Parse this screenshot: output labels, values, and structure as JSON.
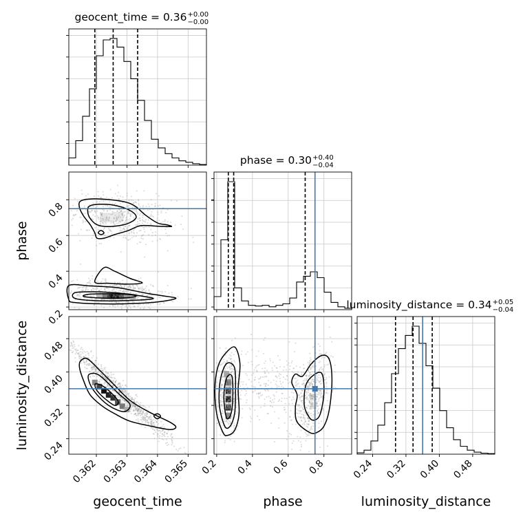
{
  "params": [
    {
      "name": "geocent_time",
      "title_label": "geocent_time",
      "median": "0.36",
      "plus": "+0.00",
      "minus": "−0.00"
    },
    {
      "name": "phase",
      "title_label": "phase",
      "median": "0.30",
      "plus": "+0.40",
      "minus": "−0.04"
    },
    {
      "name": "luminosity_distance",
      "title_label": "luminosity_distance",
      "median": "0.34",
      "plus": "+0.05",
      "minus": "−0.04"
    }
  ],
  "axis_labels": [
    "geocent_time",
    "phase",
    "luminosity_distance"
  ],
  "tick_labels": {
    "geocent_time": [
      "0.362",
      "0.363",
      "0.364",
      "0.365"
    ],
    "phase": [
      "0.2",
      "0.4",
      "0.6",
      "0.8"
    ],
    "luminosity_distance": [
      "0.24",
      "0.32",
      "0.40",
      "0.48"
    ]
  },
  "colors": {
    "truth": "#4477aa",
    "hist": "#000000",
    "grid": "#c8c8c8",
    "points": "#9a9a9a"
  },
  "chart_data": {
    "type": "corner",
    "parameters": [
      "geocent_time",
      "phase",
      "luminosity_distance"
    ],
    "ranges": {
      "geocent_time": [
        0.3611,
        0.3656
      ],
      "phase": [
        0.185,
        0.955
      ],
      "luminosity_distance": [
        0.203,
        0.533
      ]
    },
    "ticks": {
      "geocent_time": [
        0.362,
        0.363,
        0.364,
        0.365
      ],
      "phase": [
        0.2,
        0.4,
        0.6,
        0.8
      ],
      "luminosity_distance": [
        0.24,
        0.32,
        0.4,
        0.48
      ]
    },
    "truths": {
      "geocent_time": null,
      "phase": 0.75,
      "luminosity_distance": 0.36
    },
    "quantiles": {
      "geocent_time": [
        0.36195,
        0.36255,
        0.36335
      ],
      "phase": [
        0.265,
        0.295,
        0.695
      ],
      "luminosity_distance": [
        0.295,
        0.337,
        0.383
      ]
    },
    "histograms": {
      "geocent_time": {
        "bins": 20,
        "counts": [
          0.05,
          0.17,
          0.34,
          0.53,
          0.76,
          0.87,
          0.88,
          0.82,
          0.72,
          0.6,
          0.45,
          0.31,
          0.18,
          0.12,
          0.08,
          0.05,
          0.03,
          0.02,
          0.01,
          0.005
        ]
      },
      "phase": {
        "bins": 20,
        "counts": [
          0.09,
          0.48,
          0.88,
          0.15,
          0.06,
          0.03,
          0.025,
          0.03,
          0.02,
          0.03,
          0.04,
          0.08,
          0.19,
          0.23,
          0.26,
          0.22,
          0.12,
          0.05,
          0.02,
          0.01
        ]
      },
      "luminosity_distance": {
        "bins": 20,
        "counts": [
          0.01,
          0.03,
          0.1,
          0.22,
          0.39,
          0.61,
          0.8,
          0.9,
          0.97,
          0.84,
          0.67,
          0.5,
          0.33,
          0.2,
          0.11,
          0.06,
          0.03,
          0.015,
          0.008,
          0.004
        ]
      }
    },
    "contours_2d": {
      "phase_vs_geocent_time": [
        {
          "level": 1,
          "pts": [
            [
              0.36148,
              0.792
            ],
            [
              0.36185,
              0.805
            ],
            [
              0.36245,
              0.8
            ],
            [
              0.363,
              0.785
            ],
            [
              0.3633,
              0.76
            ],
            [
              0.3636,
              0.715
            ],
            [
              0.364,
              0.67
            ],
            [
              0.3643,
              0.66
            ],
            [
              0.36445,
              0.65
            ],
            [
              0.364,
              0.652
            ],
            [
              0.36345,
              0.655
            ],
            [
              0.36305,
              0.628
            ],
            [
              0.3626,
              0.605
            ],
            [
              0.36225,
              0.585
            ],
            [
              0.36202,
              0.585
            ],
            [
              0.36195,
              0.615
            ],
            [
              0.3618,
              0.66
            ],
            [
              0.36158,
              0.71
            ],
            [
              0.36145,
              0.755
            ]
          ]
        },
        {
          "level": 2,
          "pts": [
            [
              0.36178,
              0.765
            ],
            [
              0.3622,
              0.775
            ],
            [
              0.3627,
              0.765
            ],
            [
              0.36315,
              0.735
            ],
            [
              0.3633,
              0.7
            ],
            [
              0.363,
              0.665
            ],
            [
              0.36245,
              0.65
            ],
            [
              0.36205,
              0.658
            ],
            [
              0.36182,
              0.69
            ],
            [
              0.36172,
              0.73
            ]
          ]
        },
        {
          "level": 1,
          "pts": [
            [
              0.36206,
              0.615
            ],
            [
              0.36215,
              0.628
            ],
            [
              0.36225,
              0.615
            ],
            [
              0.36216,
              0.605
            ]
          ]
        },
        {
          "level": 1,
          "pts": [
            [
              0.3611,
              0.24
            ],
            [
              0.3613,
              0.225
            ],
            [
              0.362,
              0.218
            ],
            [
              0.363,
              0.218
            ],
            [
              0.364,
              0.228
            ],
            [
              0.3646,
              0.248
            ],
            [
              0.3642,
              0.262
            ],
            [
              0.3637,
              0.275
            ],
            [
              0.3632,
              0.292
            ],
            [
              0.3627,
              0.308
            ],
            [
              0.3618,
              0.318
            ],
            [
              0.3611,
              0.32
            ]
          ]
        },
        {
          "level": 2,
          "pts": [
            [
              0.3613,
              0.248
            ],
            [
              0.362,
              0.235
            ],
            [
              0.363,
              0.236
            ],
            [
              0.36385,
              0.246
            ],
            [
              0.36345,
              0.262
            ],
            [
              0.3627,
              0.278
            ],
            [
              0.3619,
              0.285
            ],
            [
              0.3613,
              0.28
            ]
          ]
        },
        {
          "level": 3,
          "pts": [
            [
              0.3616,
              0.258
            ],
            [
              0.3622,
              0.25
            ],
            [
              0.363,
              0.252
            ],
            [
              0.3633,
              0.262
            ],
            [
              0.3629,
              0.272
            ],
            [
              0.3622,
              0.274
            ],
            [
              0.3617,
              0.27
            ]
          ]
        },
        {
          "level": 1,
          "pts": [
            [
              0.36195,
              0.34
            ],
            [
              0.36225,
              0.42
            ],
            [
              0.3626,
              0.4
            ],
            [
              0.3631,
              0.36
            ],
            [
              0.3635,
              0.335
            ],
            [
              0.363,
              0.328
            ],
            [
              0.3624,
              0.333
            ]
          ]
        }
      ],
      "luminosity_distance_vs_geocent_time": [
        {
          "level": 1,
          "pts": [
            [
              0.36148,
              0.426
            ],
            [
              0.3617,
              0.432
            ],
            [
              0.3621,
              0.405
            ],
            [
              0.3626,
              0.368
            ],
            [
              0.3631,
              0.332
            ],
            [
              0.3637,
              0.305
            ],
            [
              0.3644,
              0.28
            ],
            [
              0.3646,
              0.268
            ],
            [
              0.3644,
              0.262
            ],
            [
              0.3638,
              0.27
            ],
            [
              0.3631,
              0.282
            ],
            [
              0.3626,
              0.3
            ],
            [
              0.3622,
              0.318
            ],
            [
              0.3618,
              0.345
            ],
            [
              0.36158,
              0.38
            ],
            [
              0.36145,
              0.41
            ]
          ]
        },
        {
          "level": 2,
          "pts": [
            [
              0.36178,
              0.395
            ],
            [
              0.3621,
              0.392
            ],
            [
              0.3627,
              0.35
            ],
            [
              0.3631,
              0.322
            ],
            [
              0.3629,
              0.305
            ],
            [
              0.3624,
              0.32
            ],
            [
              0.36195,
              0.352
            ],
            [
              0.36175,
              0.38
            ]
          ]
        },
        {
          "level": 3,
          "pts": [
            [
              0.36198,
              0.372
            ],
            [
              0.3623,
              0.362
            ],
            [
              0.3627,
              0.332
            ],
            [
              0.3626,
              0.32
            ],
            [
              0.36225,
              0.338
            ],
            [
              0.362,
              0.358
            ]
          ]
        },
        {
          "level": 1,
          "pts": [
            [
              0.36388,
              0.295
            ],
            [
              0.364,
              0.3
            ],
            [
              0.3641,
              0.294
            ],
            [
              0.36399,
              0.288
            ]
          ]
        }
      ],
      "luminosity_distance_vs_phase": [
        {
          "level": 1,
          "pts": [
            [
              0.235,
              0.255
            ],
            [
              0.2,
              0.3
            ],
            [
              0.19,
              0.36
            ],
            [
              0.205,
              0.41
            ],
            [
              0.24,
              0.44
            ],
            [
              0.3,
              0.46
            ],
            [
              0.33,
              0.42
            ],
            [
              0.32,
              0.36
            ],
            [
              0.325,
              0.3
            ],
            [
              0.3,
              0.26
            ],
            [
              0.26,
              0.248
            ]
          ]
        },
        {
          "level": 2,
          "pts": [
            [
              0.245,
              0.27
            ],
            [
              0.215,
              0.32
            ],
            [
              0.22,
              0.38
            ],
            [
              0.255,
              0.42
            ],
            [
              0.3,
              0.41
            ],
            [
              0.305,
              0.35
            ],
            [
              0.3,
              0.3
            ],
            [
              0.275,
              0.27
            ]
          ]
        },
        {
          "level": 3,
          "pts": [
            [
              0.255,
              0.29
            ],
            [
              0.24,
              0.34
            ],
            [
              0.255,
              0.385
            ],
            [
              0.285,
              0.39
            ],
            [
              0.29,
              0.34
            ],
            [
              0.28,
              0.3
            ]
          ]
        },
        {
          "level": 1,
          "pts": [
            [
              0.72,
              0.255
            ],
            [
              0.65,
              0.28
            ],
            [
              0.64,
              0.315
            ],
            [
              0.65,
              0.345
            ],
            [
              0.62,
              0.375
            ],
            [
              0.64,
              0.395
            ],
            [
              0.68,
              0.39
            ],
            [
              0.73,
              0.42
            ],
            [
              0.79,
              0.44
            ],
            [
              0.83,
              0.43
            ],
            [
              0.845,
              0.38
            ],
            [
              0.83,
              0.31
            ],
            [
              0.8,
              0.27
            ],
            [
              0.76,
              0.255
            ]
          ]
        },
        {
          "level": 2,
          "pts": [
            [
              0.72,
              0.29
            ],
            [
              0.69,
              0.32
            ],
            [
              0.7,
              0.37
            ],
            [
              0.75,
              0.395
            ],
            [
              0.79,
              0.395
            ],
            [
              0.8,
              0.35
            ],
            [
              0.78,
              0.3
            ],
            [
              0.75,
              0.285
            ]
          ]
        }
      ]
    }
  }
}
